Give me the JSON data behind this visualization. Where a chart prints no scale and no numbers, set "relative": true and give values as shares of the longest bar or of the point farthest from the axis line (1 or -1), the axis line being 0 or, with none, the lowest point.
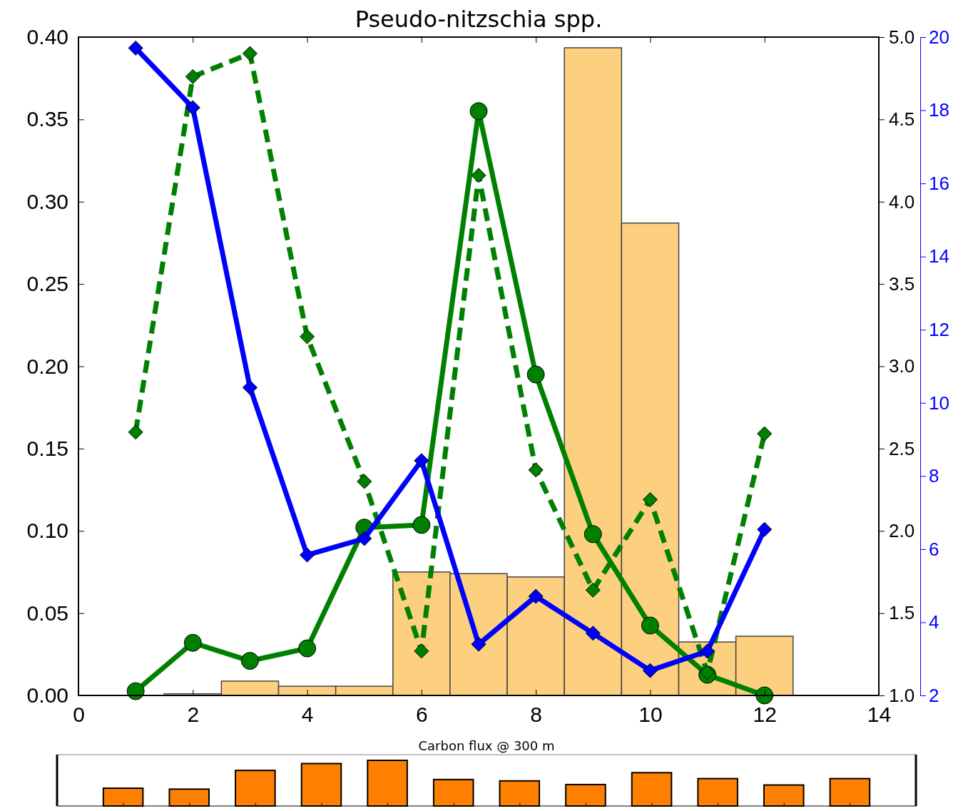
{
  "chart_data": [
    {
      "type": "line",
      "title": "Pseudo-nitzschia spp.",
      "x": [
        1,
        2,
        3,
        4,
        5,
        6,
        7,
        8,
        9,
        10,
        11,
        12
      ],
      "xlim": [
        0,
        14
      ],
      "xticks": [
        0,
        2,
        4,
        6,
        8,
        10,
        12,
        14
      ],
      "ylim": [
        0,
        0.4
      ],
      "yticks": [
        {
          "value": 0,
          "label": "0.00"
        },
        {
          "value": 0.05,
          "label": "0.05"
        },
        {
          "value": 0.1,
          "label": "0.10"
        },
        {
          "value": 0.15,
          "label": "0.15"
        },
        {
          "value": 0.2,
          "label": "0.20"
        },
        {
          "value": 0.25,
          "label": "0.25"
        },
        {
          "value": 0.3,
          "label": "0.30"
        },
        {
          "value": 0.35,
          "label": "0.35"
        },
        {
          "value": 0.4,
          "label": "0.40"
        }
      ],
      "y2lim": [
        1,
        5
      ],
      "y2ticks": [
        {
          "value": 1,
          "label": "1.0"
        },
        {
          "value": 1.5,
          "label": "1.5"
        },
        {
          "value": 2,
          "label": "2.0"
        },
        {
          "value": 2.5,
          "label": "2.5"
        },
        {
          "value": 3,
          "label": "3.0"
        },
        {
          "value": 3.5,
          "label": "3.5"
        },
        {
          "value": 4,
          "label": "4.0"
        },
        {
          "value": 4.5,
          "label": "4.5"
        },
        {
          "value": 5,
          "label": "5.0"
        }
      ],
      "y3lim": [
        2,
        20
      ],
      "y3ticks": [
        2,
        4,
        6,
        8,
        10,
        12,
        14,
        16,
        18,
        20
      ],
      "grid": false,
      "series": [
        {
          "type": "bar",
          "color": "#fdd07f",
          "x": [
            2,
            3,
            4,
            5,
            6,
            7,
            8,
            9,
            10,
            11,
            12
          ],
          "values": [
            0.001,
            0.0087,
            0.0056,
            0.0056,
            0.075,
            0.074,
            0.072,
            0.3935,
            0.287,
            0.0325,
            0.036
          ]
        },
        {
          "type": "line",
          "color": "#008000",
          "marker": "circle",
          "line_style": "solid",
          "values": [
            0.0026,
            0.032,
            0.021,
            0.0286,
            0.102,
            0.1036,
            0.355,
            0.195,
            0.098,
            0.0425,
            0.0126,
            0
          ]
        },
        {
          "type": "line",
          "color": "#008000",
          "marker": "diamond",
          "line_style": "dashed",
          "axis": "y2",
          "values": [
            2.6,
            4.76,
            4.9,
            3.18,
            2.3,
            1.27,
            4.16,
            2.37,
            1.64,
            2.19,
            1.14,
            2.59
          ]
        },
        {
          "type": "line",
          "color": "#0000ff",
          "marker": "diamond",
          "line_style": "solid",
          "axis": "y3",
          "values": [
            19.7,
            18.07,
            10.42,
            5.84,
            6.29,
            8.42,
            3.4,
            4.71,
            3.7,
            2.68,
            3.21,
            6.54
          ]
        }
      ]
    },
    {
      "type": "bar",
      "title": "Carbon flux @ 300 m",
      "relative": true,
      "color": "#ff8000",
      "categories": [
        null,
        null,
        null,
        null,
        null,
        null,
        null,
        null,
        null,
        null,
        null,
        null
      ],
      "values": [
        0.39,
        0.37,
        0.78,
        0.93,
        1,
        0.58,
        0.55,
        0.47,
        0.73,
        0.6,
        0.46,
        0.6
      ]
    }
  ]
}
